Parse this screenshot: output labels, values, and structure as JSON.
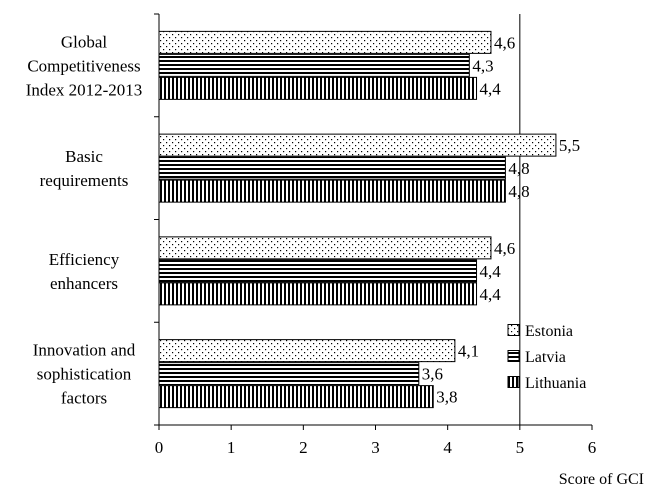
{
  "chart_data": {
    "type": "bar",
    "orientation": "horizontal",
    "categories": [
      [
        "Global",
        "Competitiveness",
        "Index 2012-2013"
      ],
      [
        "Basic",
        "requirements"
      ],
      [
        "Efficiency",
        "enhancers"
      ],
      [
        "Innovation and",
        "sophistication",
        "factors"
      ]
    ],
    "series": [
      {
        "name": "Estonia",
        "pattern": "dots",
        "values": [
          4.6,
          5.5,
          4.6,
          4.1
        ],
        "labels": [
          "4,6",
          "5,5",
          "4,6",
          "4,1"
        ]
      },
      {
        "name": "Latvia",
        "pattern": "horizontal-lines",
        "values": [
          4.3,
          4.8,
          4.4,
          3.6
        ],
        "labels": [
          "4,3",
          "4,8",
          "4,4",
          "3,6"
        ]
      },
      {
        "name": "Lithuania",
        "pattern": "vertical-lines",
        "values": [
          4.4,
          4.8,
          4.4,
          3.8
        ],
        "labels": [
          "4,4",
          "4,8",
          "4,4",
          "3,8"
        ]
      }
    ],
    "xlabel": "Score of GCI",
    "xlim": [
      0,
      6
    ],
    "xticks": [
      "0",
      "1",
      "2",
      "3",
      "4",
      "5",
      "6"
    ],
    "grid": "vertical gridline at 5",
    "legend_position": "right"
  }
}
